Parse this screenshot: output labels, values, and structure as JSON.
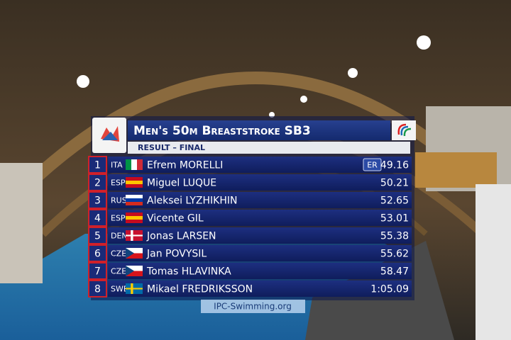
{
  "header": {
    "title": "Men's 50m Breaststroke SB3",
    "subtitle": "RESULT – FINAL"
  },
  "table": {
    "rows": [
      {
        "rank": 1,
        "country": "ITA",
        "name": "Efrem MORELLI",
        "record": "ER",
        "time": "49.16"
      },
      {
        "rank": 2,
        "country": "ESP",
        "name": "Miguel LUQUE",
        "time": "50.21"
      },
      {
        "rank": 3,
        "country": "RUS",
        "name": "Aleksei LYZHIKHIN",
        "time": "52.65"
      },
      {
        "rank": 4,
        "country": "ESP",
        "name": "Vicente GIL",
        "time": "53.01"
      },
      {
        "rank": 5,
        "country": "DEN",
        "name": "Jonas LARSEN",
        "time": "55.38"
      },
      {
        "rank": 6,
        "country": "CZE",
        "name": "Jan POVYSIL",
        "time": "55.62"
      },
      {
        "rank": 7,
        "country": "CZE",
        "name": "Tomas HLAVINKA",
        "time": "58.47"
      },
      {
        "rank": 8,
        "country": "SWE",
        "name": "Mikael FREDRIKSSON",
        "time": "1:05.09"
      }
    ]
  },
  "footer": {
    "website": "IPC-Swimming.org"
  }
}
